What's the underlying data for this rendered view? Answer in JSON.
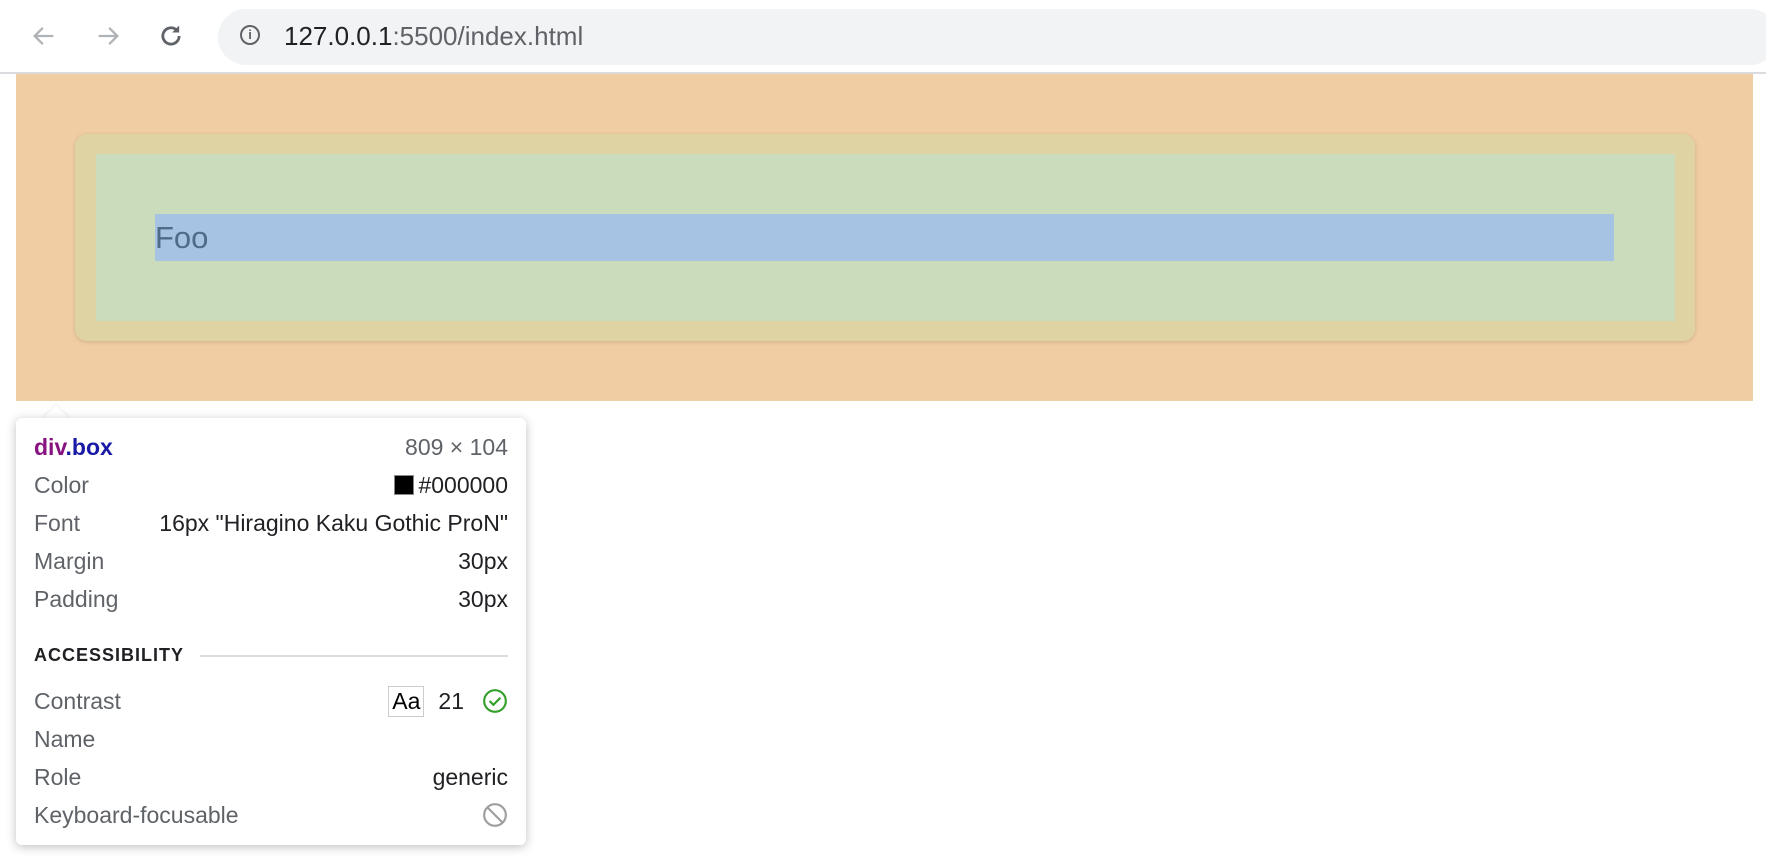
{
  "browser": {
    "url_host": "127.0.0.1",
    "url_rest": ":5500/index.html",
    "back_icon": "arrow-left-icon",
    "forward_icon": "arrow-right-icon",
    "reload_icon": "reload-icon"
  },
  "page": {
    "content_text": "Foo"
  },
  "overlay_colors": {
    "margin": "#f1cda3",
    "border": "#dfd2a3",
    "padding": "#cadcbc",
    "content": "#a6c3e3"
  },
  "tooltip": {
    "element": "div",
    "class": ".box",
    "size": "809 × 104",
    "rows": [
      {
        "label": "Color",
        "value": "#000000"
      },
      {
        "label": "Font",
        "value": "16px \"Hiragino Kaku Gothic ProN\""
      },
      {
        "label": "Margin",
        "value": "30px"
      },
      {
        "label": "Padding",
        "value": "30px"
      }
    ],
    "accessibility": {
      "heading": "ACCESSIBILITY",
      "contrast_label": "Contrast",
      "contrast_sample": "Aa",
      "contrast_value": "21",
      "contrast_icon": "check-circle-icon",
      "name_label": "Name",
      "role_label": "Role",
      "role_value": "generic",
      "focusable_label": "Keyboard-focusable",
      "focusable_icon": "not-allowed-icon"
    }
  }
}
